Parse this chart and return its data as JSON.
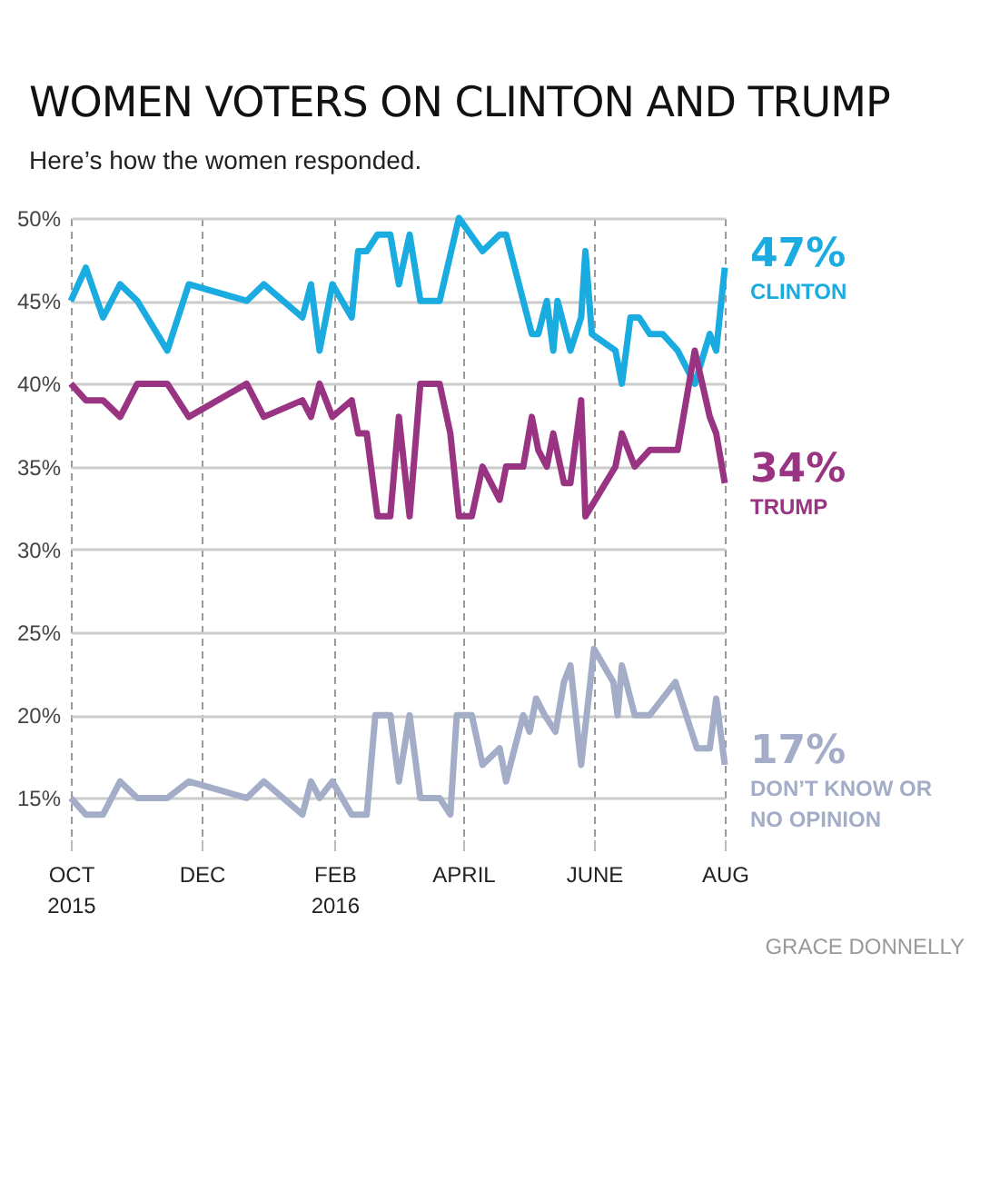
{
  "chart_data": {
    "type": "line",
    "title": "WOMEN VOTERS ON CLINTON AND TRUMP",
    "subtitle": "Here’s how the women responded.",
    "annotations": [
      "GRACE DONNELLY"
    ],
    "xlim": [
      "2015-10-01",
      "2016-08-01"
    ],
    "xticks": [
      {
        "value": "2015-10-01",
        "label": "OCT\n2015"
      },
      {
        "value": "2015-12-01",
        "label": "DEC"
      },
      {
        "value": "2016-02-01",
        "label": "FEB\n2016"
      },
      {
        "value": "2016-04-01",
        "label": "APRIL"
      },
      {
        "value": "2016-06-01",
        "label": "JUNE"
      },
      {
        "value": "2016-08-01",
        "label": "AUG"
      }
    ],
    "ylim": [
      12.5,
      50
    ],
    "yticks": [
      {
        "value": 15,
        "label": "15%"
      },
      {
        "value": 20,
        "label": "20%"
      },
      {
        "value": 25,
        "label": "25%"
      },
      {
        "value": 30,
        "label": "30%"
      },
      {
        "value": 35,
        "label": "35%"
      },
      {
        "value": 40,
        "label": "40%"
      },
      {
        "value": 45,
        "label": "45%"
      },
      {
        "value": 50,
        "label": "50%"
      }
    ],
    "grid": true,
    "marker": "none",
    "line_style": "solid",
    "series": [
      {
        "name": "CLINTON",
        "color": "#1aabe0",
        "x": [
          "2015-10-01",
          "2015-10-08",
          "2015-10-16",
          "2015-10-24",
          "2015-11-01",
          "2015-11-15",
          "2015-11-25",
          "2015-12-22",
          "2015-12-30",
          "2016-01-17",
          "2016-01-21",
          "2016-01-25",
          "2016-01-31",
          "2016-02-09",
          "2016-02-12",
          "2016-02-16",
          "2016-02-21",
          "2016-02-27",
          "2016-03-02",
          "2016-03-07",
          "2016-03-12",
          "2016-03-21",
          "2016-03-30",
          "2016-04-10",
          "2016-04-18",
          "2016-04-21",
          "2016-05-03",
          "2016-05-06",
          "2016-05-10",
          "2016-05-13",
          "2016-05-15",
          "2016-05-21",
          "2016-05-26",
          "2016-05-28",
          "2016-05-31",
          "2016-06-11",
          "2016-06-14",
          "2016-06-18",
          "2016-06-22",
          "2016-06-27",
          "2016-07-03",
          "2016-07-10",
          "2016-07-18",
          "2016-07-25",
          "2016-07-28",
          "2016-08-01"
        ],
        "values": [
          45,
          47,
          44,
          46,
          45,
          42,
          46,
          45,
          46,
          44,
          46,
          42,
          46,
          44,
          48,
          48,
          49,
          49,
          46,
          49,
          45,
          45,
          50,
          48,
          49,
          49,
          43,
          43,
          45,
          42,
          45,
          42,
          44,
          48,
          43,
          42,
          40,
          44,
          44,
          43,
          43,
          42,
          40,
          43,
          42,
          47
        ],
        "value_labels": [
          null,
          null,
          null,
          null,
          null,
          null,
          null,
          null,
          null,
          null,
          null,
          null,
          null,
          null,
          null,
          null,
          null,
          null,
          null,
          null,
          null,
          null,
          null,
          null,
          null,
          null,
          null,
          null,
          null,
          null,
          null,
          null,
          null,
          null,
          null,
          null,
          null,
          null,
          null,
          null,
          null,
          null,
          null,
          null,
          null,
          "47%"
        ]
      },
      {
        "name": "TRUMP",
        "color": "#993482",
        "x": [
          "2015-10-01",
          "2015-10-08",
          "2015-10-16",
          "2015-10-24",
          "2015-11-01",
          "2015-11-15",
          "2015-11-25",
          "2015-12-22",
          "2015-12-30",
          "2016-01-17",
          "2016-01-21",
          "2016-01-25",
          "2016-01-31",
          "2016-02-09",
          "2016-02-12",
          "2016-02-16",
          "2016-02-21",
          "2016-02-27",
          "2016-03-02",
          "2016-03-07",
          "2016-03-12",
          "2016-03-21",
          "2016-03-26",
          "2016-03-30",
          "2016-04-05",
          "2016-04-10",
          "2016-04-18",
          "2016-04-21",
          "2016-04-29",
          "2016-05-03",
          "2016-05-06",
          "2016-05-10",
          "2016-05-13",
          "2016-05-18",
          "2016-05-21",
          "2016-05-26",
          "2016-05-28",
          "2016-06-11",
          "2016-06-14",
          "2016-06-20",
          "2016-06-27",
          "2016-07-03",
          "2016-07-10",
          "2016-07-18",
          "2016-07-25",
          "2016-07-28",
          "2016-08-01"
        ],
        "values": [
          40,
          39,
          39,
          38,
          40,
          40,
          38,
          40,
          38,
          39,
          38,
          40,
          38,
          39,
          37,
          37,
          32,
          32,
          38,
          32,
          40,
          40,
          37,
          32,
          32,
          35,
          33,
          35,
          35,
          38,
          36,
          35,
          37,
          34,
          34,
          39,
          32,
          35,
          37,
          35,
          36,
          36,
          36,
          42,
          38,
          37,
          34
        ],
        "value_labels": [
          null,
          null,
          null,
          null,
          null,
          null,
          null,
          null,
          null,
          null,
          null,
          null,
          null,
          null,
          null,
          null,
          null,
          null,
          null,
          null,
          null,
          null,
          null,
          null,
          null,
          null,
          null,
          null,
          null,
          null,
          null,
          null,
          null,
          null,
          null,
          null,
          null,
          null,
          null,
          null,
          null,
          null,
          null,
          null,
          null,
          null,
          "34%"
        ]
      },
      {
        "name": "DON’T KNOW OR NO OPINION",
        "color": "#a3adc8",
        "x": [
          "2015-10-01",
          "2015-10-08",
          "2015-10-16",
          "2015-10-24",
          "2015-11-01",
          "2015-11-15",
          "2015-11-25",
          "2015-12-22",
          "2015-12-30",
          "2016-01-17",
          "2016-01-21",
          "2016-01-25",
          "2016-01-31",
          "2016-02-09",
          "2016-02-16",
          "2016-02-20",
          "2016-02-27",
          "2016-03-02",
          "2016-03-07",
          "2016-03-12",
          "2016-03-21",
          "2016-03-26",
          "2016-03-29",
          "2016-04-05",
          "2016-04-10",
          "2016-04-18",
          "2016-04-21",
          "2016-04-29",
          "2016-05-02",
          "2016-05-05",
          "2016-05-09",
          "2016-05-14",
          "2016-05-18",
          "2016-05-21",
          "2016-05-26",
          "2016-06-01",
          "2016-06-10",
          "2016-06-12",
          "2016-06-14",
          "2016-06-20",
          "2016-06-27",
          "2016-07-09",
          "2016-07-19",
          "2016-07-25",
          "2016-07-28",
          "2016-08-01"
        ],
        "values": [
          15,
          14,
          14,
          16,
          15,
          15,
          16,
          15,
          16,
          14,
          16,
          15,
          16,
          14,
          14,
          20,
          20,
          16,
          20,
          15,
          15,
          14,
          20,
          20,
          17,
          18,
          16,
          20,
          19,
          21,
          20,
          19,
          22,
          23,
          17,
          24,
          22,
          20,
          23,
          20,
          20,
          22,
          18,
          18,
          21,
          17
        ],
        "value_labels": [
          null,
          null,
          null,
          null,
          null,
          null,
          null,
          null,
          null,
          null,
          null,
          null,
          null,
          null,
          null,
          null,
          null,
          null,
          null,
          null,
          null,
          null,
          null,
          null,
          null,
          null,
          null,
          null,
          null,
          null,
          null,
          null,
          null,
          null,
          null,
          null,
          null,
          null,
          null,
          null,
          null,
          null,
          null,
          null,
          null,
          "17%"
        ]
      }
    ]
  }
}
